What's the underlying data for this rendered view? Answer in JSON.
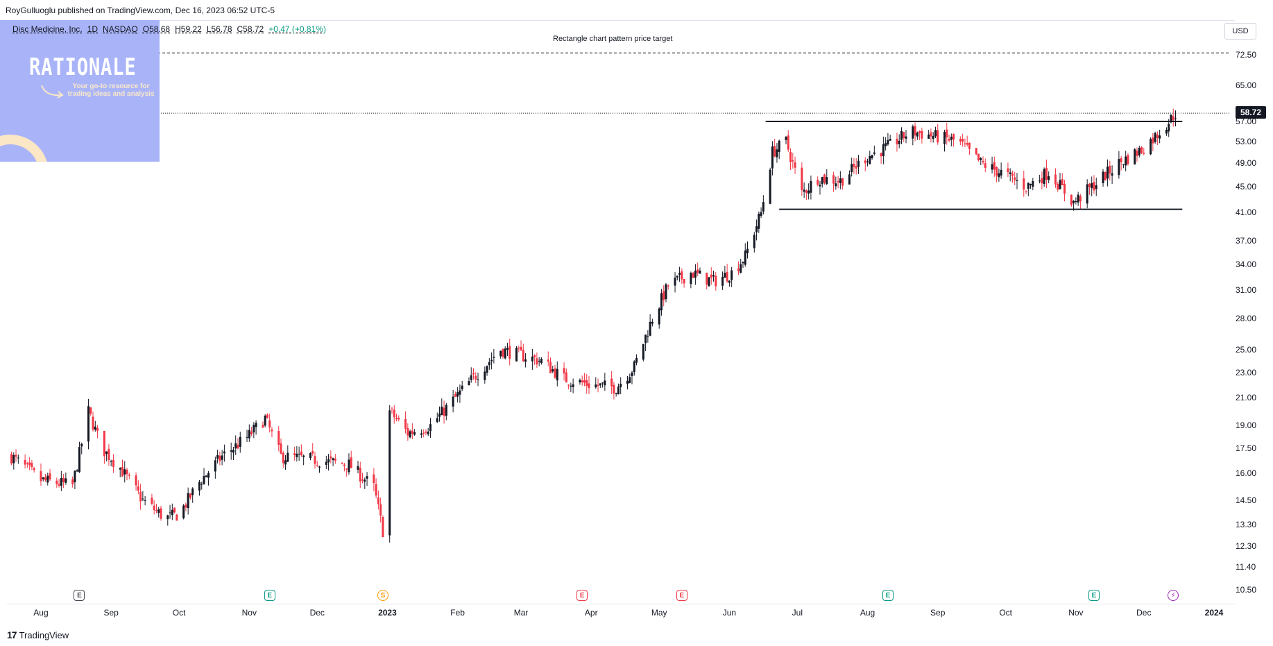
{
  "header": {
    "published": "RoyGulluoglu published on TradingView.com, Dec 16, 2023 06:52 UTC-5"
  },
  "symbol": {
    "name": "Disc Medicine, Inc.",
    "interval": "1D",
    "exchange": "NASDAQ",
    "open": "O58.68",
    "high": "H59.22",
    "low": "L56.78",
    "close": "C58.72",
    "change": "+0.47 (+0.81%)"
  },
  "currency": "USD",
  "overlay": {
    "title": "RATIONALE",
    "tagline": "Your go-to resource for trading ideas and analysis"
  },
  "annotation": "Rectangle chart pattern price target",
  "last_price": "58.72",
  "footer": {
    "brand": "TradingView"
  },
  "colors": {
    "up": "#131722",
    "down": "#f23645",
    "event_green": "#089981",
    "event_red": "#f23645",
    "event_orange": "#ff9800",
    "event_purple": "#9c27b0",
    "overlay": "#a9b4f8"
  },
  "chart_data": {
    "type": "candlestick",
    "scale": "log",
    "y_ticks": [
      "72.50",
      "65.00",
      "57.00",
      "53.00",
      "49.00",
      "45.00",
      "41.00",
      "37.00",
      "34.00",
      "31.00",
      "28.00",
      "25.00",
      "23.00",
      "21.00",
      "19.00",
      "17.50",
      "16.00",
      "14.50",
      "13.30",
      "12.30",
      "11.40",
      "10.50"
    ],
    "x_ticks": [
      {
        "label": "Aug",
        "bold": false
      },
      {
        "label": "Sep",
        "bold": false
      },
      {
        "label": "Oct",
        "bold": false
      },
      {
        "label": "Nov",
        "bold": false
      },
      {
        "label": "Dec",
        "bold": false
      },
      {
        "label": "2023",
        "bold": true
      },
      {
        "label": "Feb",
        "bold": false
      },
      {
        "label": "Mar",
        "bold": false
      },
      {
        "label": "Apr",
        "bold": false
      },
      {
        "label": "May",
        "bold": false
      },
      {
        "label": "Jun",
        "bold": false
      },
      {
        "label": "Jul",
        "bold": false
      },
      {
        "label": "Aug",
        "bold": false
      },
      {
        "label": "Sep",
        "bold": false
      },
      {
        "label": "Oct",
        "bold": false
      },
      {
        "label": "Nov",
        "bold": false
      },
      {
        "label": "Dec",
        "bold": false
      },
      {
        "label": "2024",
        "bold": true
      }
    ],
    "rectangle_top": 57.0,
    "rectangle_bottom": 41.5,
    "target_level": 73.0,
    "last_close": 58.72,
    "price_path": [
      [
        "2022-07-19",
        17.0
      ],
      [
        "2022-08-01",
        15.6
      ],
      [
        "2022-08-15",
        15.3
      ],
      [
        "2022-08-22",
        20.0
      ],
      [
        "2022-08-28",
        17.5
      ],
      [
        "2022-09-05",
        16.3
      ],
      [
        "2022-09-15",
        14.5
      ],
      [
        "2022-09-25",
        13.6
      ],
      [
        "2022-10-01",
        13.8
      ],
      [
        "2022-10-10",
        15.5
      ],
      [
        "2022-10-20",
        17.0
      ],
      [
        "2022-10-31",
        18.2
      ],
      [
        "2022-11-08",
        19.5
      ],
      [
        "2022-11-15",
        17.0
      ],
      [
        "2022-11-30",
        16.8
      ],
      [
        "2022-12-15",
        16.5
      ],
      [
        "2022-12-26",
        15.2
      ],
      [
        "2022-12-30",
        13.0
      ],
      [
        "2023-01-02",
        20.0
      ],
      [
        "2023-01-10",
        18.5
      ],
      [
        "2023-01-20",
        19.0
      ],
      [
        "2023-01-31",
        21.0
      ],
      [
        "2023-02-10",
        23.0
      ],
      [
        "2023-02-20",
        25.0
      ],
      [
        "2023-03-01",
        24.5
      ],
      [
        "2023-03-10",
        24.0
      ],
      [
        "2023-03-20",
        22.5
      ],
      [
        "2023-04-01",
        22.0
      ],
      [
        "2023-04-12",
        21.8
      ],
      [
        "2023-04-20",
        23.5
      ],
      [
        "2023-04-28",
        28.0
      ],
      [
        "2023-05-05",
        31.5
      ],
      [
        "2023-05-15",
        33.0
      ],
      [
        "2023-05-25",
        32.0
      ],
      [
        "2023-06-02",
        33.0
      ],
      [
        "2023-06-08",
        35.0
      ],
      [
        "2023-06-15",
        41.0
      ],
      [
        "2023-06-20",
        51.0
      ],
      [
        "2023-06-26",
        53.0
      ],
      [
        "2023-07-03",
        44.0
      ],
      [
        "2023-07-10",
        46.5
      ],
      [
        "2023-07-20",
        46.0
      ],
      [
        "2023-07-31",
        50.0
      ],
      [
        "2023-08-10",
        52.0
      ],
      [
        "2023-08-20",
        55.0
      ],
      [
        "2023-08-31",
        54.0
      ],
      [
        "2023-09-10",
        53.0
      ],
      [
        "2023-09-20",
        49.0
      ],
      [
        "2023-10-01",
        47.0
      ],
      [
        "2023-10-10",
        45.0
      ],
      [
        "2023-10-20",
        47.5
      ],
      [
        "2023-10-31",
        42.5
      ],
      [
        "2023-11-08",
        45.0
      ],
      [
        "2023-11-20",
        49.0
      ],
      [
        "2023-11-30",
        51.5
      ],
      [
        "2023-12-06",
        54.0
      ],
      [
        "2023-12-12",
        57.0
      ],
      [
        "2023-12-15",
        58.72
      ]
    ],
    "events": [
      {
        "label": "E",
        "date": "2022-08-18",
        "style": "gray"
      },
      {
        "label": "E",
        "date": "2022-11-10",
        "style": "green"
      },
      {
        "label": "S",
        "date": "2022-12-30",
        "style": "orange"
      },
      {
        "label": "E",
        "date": "2023-03-28",
        "style": "red"
      },
      {
        "label": "E",
        "date": "2023-05-11",
        "style": "red"
      },
      {
        "label": "E",
        "date": "2023-08-10",
        "style": "green"
      },
      {
        "label": "E",
        "date": "2023-11-09",
        "style": "green"
      },
      {
        "label": "⚡",
        "date": "2023-12-14",
        "style": "purple"
      }
    ]
  }
}
